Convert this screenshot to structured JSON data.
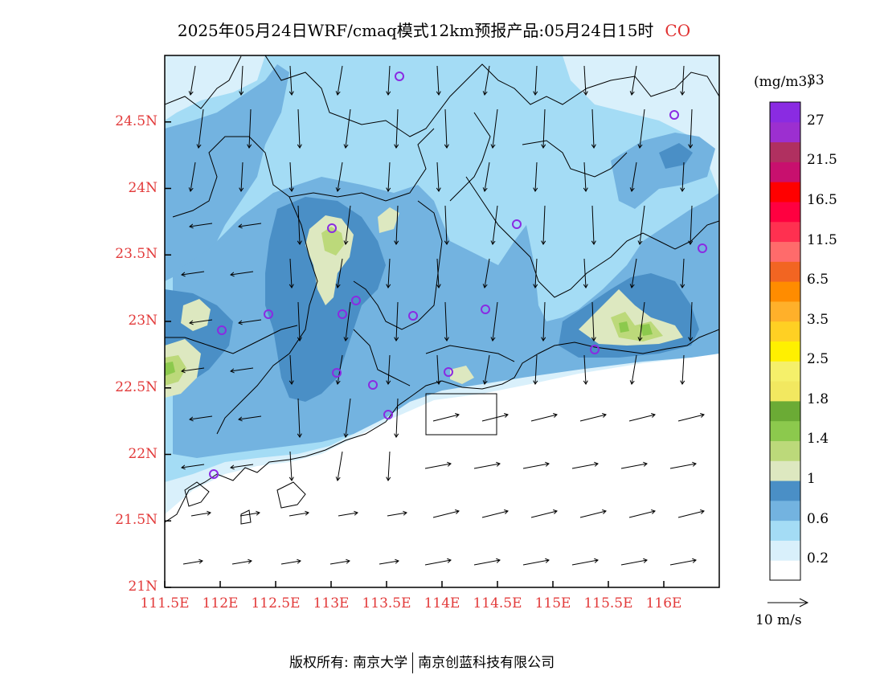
{
  "title": {
    "text": "2025年05月24日WRF/cmaq模式12km预报产品:05月24日15时",
    "pollutant": "CO"
  },
  "map": {
    "lon_range": [
      111.5,
      116.5
    ],
    "lat_range": [
      21.0,
      25.0
    ],
    "lat_ticks": [
      "24.5N",
      "24N",
      "23.5N",
      "23N",
      "22.5N",
      "22N",
      "21.5N",
      "21N"
    ],
    "lon_ticks": [
      "111.5E",
      "112E",
      "112.5E",
      "113E",
      "113.5E",
      "114E",
      "114.5E",
      "115E",
      "115.5E",
      "116E"
    ],
    "label_color": "#e23a3a",
    "sea_color": "#ffffff"
  },
  "colorbar": {
    "unit": "(mg/m3)",
    "colors": [
      "#ffffff",
      "#d9f0fb",
      "#a4dcf5",
      "#73b3e0",
      "#4a8fc6",
      "#dde8c0",
      "#bcd97a",
      "#8cc94d",
      "#6bab35",
      "#f2e860",
      "#f5f06a",
      "#fff000",
      "#ffd023",
      "#ffb02a",
      "#ff8c00",
      "#f26522",
      "#ff6b6b",
      "#ff3050",
      "#ff0040",
      "#ff0000",
      "#c8106e",
      "#b03060",
      "#9c2fd0",
      "#8a2be2"
    ],
    "labels": [
      "0.2",
      "0.6",
      "1",
      "1.4",
      "1.8",
      "2.5",
      "3.5",
      "6.5",
      "11.5",
      "16.5",
      "21.5",
      "27",
      "33"
    ]
  },
  "vector_legend": {
    "label": "10 m/s"
  },
  "stations_color": "#8a2be2",
  "footer": {
    "left": "版权所有: 南京大学",
    "right": "南京创蓝科技有限公司"
  }
}
